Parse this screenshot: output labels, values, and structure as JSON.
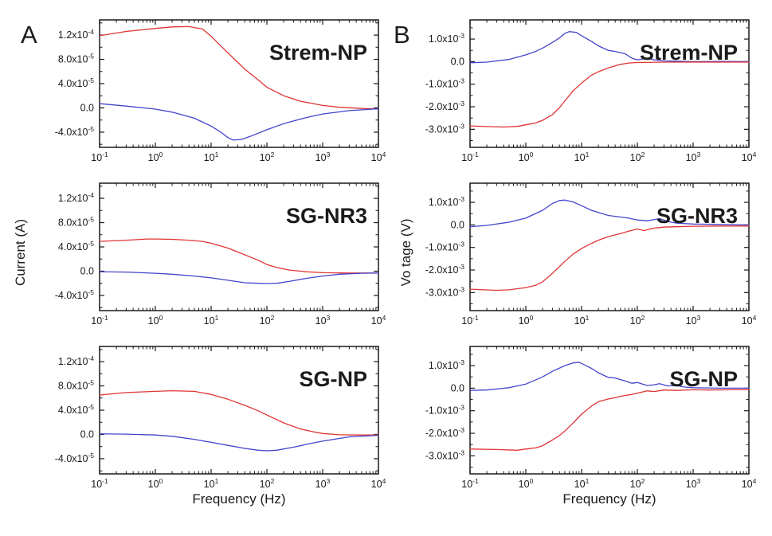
{
  "figure": {
    "background": "#ffffff",
    "colors": {
      "red_series": "#e03434",
      "blue_series": "#4444cc",
      "axis": "#1a1a1a",
      "text": "#1b1b1b"
    },
    "columns": [
      {
        "letter": "A",
        "y_axis_title": "Current (A)",
        "x_axis_title": "Frequency (Hz)",
        "chart_indexes": [
          0,
          1,
          2
        ]
      },
      {
        "letter": "B",
        "y_axis_title": "Vo tage (V)",
        "x_axis_title": "Frequency (Hz)",
        "chart_indexes": [
          3,
          4,
          5
        ]
      }
    ]
  },
  "chart_data": [
    {
      "type": "line",
      "panel": "A",
      "label": "Strem-NP",
      "xlabel": "Frequency (Hz)",
      "ylabel": "Current (A)",
      "xscale": "log",
      "xlim": [
        0.1,
        10000
      ],
      "ylim": [
        -6.5e-05,
        0.000145
      ],
      "grid": false,
      "legend": "none",
      "xticks": {
        "values": [
          0.1,
          1,
          10,
          100,
          1000,
          10000
        ],
        "labels": [
          "10^-1",
          "10^0",
          "10^1",
          "10^2",
          "10^3",
          "10^4"
        ]
      },
      "yticks": {
        "values": [
          0.00012,
          8e-05,
          4e-05,
          0,
          -4e-05
        ],
        "labels": [
          "1.2x10^-4",
          "8.0x10^-5",
          "4.0x10^-5",
          "0.0",
          "-4.0x10^-5"
        ]
      },
      "series": [
        {
          "name": "red",
          "color": "#e03434",
          "x": [
            0.1,
            0.3,
            1,
            2,
            4,
            7,
            10,
            15,
            25,
            40,
            70,
            100,
            200,
            400,
            1000,
            2000,
            5000,
            10000
          ],
          "y": [
            0.000119,
            0.000126,
            0.000131,
            0.0001335,
            0.000134,
            0.00013,
            0.000118,
            0.000102,
            8.2e-05,
            6.4e-05,
            4.6e-05,
            3.4e-05,
            2e-05,
            1.1e-05,
            4e-06,
            1e-06,
            -1e-06,
            -1.5e-06
          ]
        },
        {
          "name": "blue",
          "color": "#4444cc",
          "x": [
            0.1,
            0.3,
            1,
            2,
            5,
            10,
            15,
            20,
            25,
            35,
            50,
            100,
            200,
            500,
            1000,
            3000,
            10000
          ],
          "y": [
            7e-06,
            3e-06,
            -2e-06,
            -7e-06,
            -1.7e-05,
            -3e-05,
            -4e-05,
            -4.9e-05,
            -5.3e-05,
            -5.2e-05,
            -4.7e-05,
            -3.6e-05,
            -2.6e-05,
            -1.6e-05,
            -1e-05,
            -4.5e-06,
            -1.5e-06
          ]
        }
      ]
    },
    {
      "type": "line",
      "panel": "A",
      "label": "SG-NR3",
      "xlabel": "Frequency (Hz)",
      "ylabel": "Current (A)",
      "xscale": "log",
      "xlim": [
        0.1,
        10000
      ],
      "ylim": [
        -6.5e-05,
        0.000145
      ],
      "grid": false,
      "legend": "none",
      "xticks": {
        "values": [
          0.1,
          1,
          10,
          100,
          1000,
          10000
        ],
        "labels": [
          "10^-1",
          "10^0",
          "10^1",
          "10^2",
          "10^3",
          "10^4"
        ]
      },
      "yticks": {
        "values": [
          0.00012,
          8e-05,
          4e-05,
          0,
          -4e-05
        ],
        "labels": [
          "1.2x10^-4",
          "8.0x10^-5",
          "4.0x10^-5",
          "0.0",
          "-4.0x10^-5"
        ]
      },
      "series": [
        {
          "name": "red",
          "color": "#e03434",
          "x": [
            0.1,
            0.3,
            0.7,
            1,
            2,
            4,
            7,
            10,
            20,
            40,
            70,
            100,
            150,
            250,
            500,
            1000,
            3000,
            10000
          ],
          "y": [
            4.9e-05,
            5.1e-05,
            5.3e-05,
            5.3e-05,
            5.25e-05,
            5.1e-05,
            4.9e-05,
            4.6e-05,
            3.8e-05,
            2.7e-05,
            1.8e-05,
            1.1e-05,
            6e-06,
            2e-06,
            -1e-06,
            -2.5e-06,
            -3e-06,
            -3e-06
          ]
        },
        {
          "name": "blue",
          "color": "#4444cc",
          "x": [
            0.1,
            0.3,
            1,
            2,
            5,
            10,
            20,
            40,
            70,
            100,
            150,
            250,
            500,
            1000,
            2000,
            5000,
            10000
          ],
          "y": [
            -1e-06,
            -1.5e-06,
            -3.5e-06,
            -5e-06,
            -8e-06,
            -1.1e-05,
            -1.5e-05,
            -1.9e-05,
            -2e-05,
            -2.05e-05,
            -2e-05,
            -1.7e-05,
            -1.2e-05,
            -8e-06,
            -5e-06,
            -3.5e-06,
            -3e-06
          ]
        }
      ]
    },
    {
      "type": "line",
      "panel": "A",
      "label": "SG-NP",
      "xlabel": "Frequency (Hz)",
      "ylabel": "Current (A)",
      "xscale": "log",
      "xlim": [
        0.1,
        10000
      ],
      "ylim": [
        -6.5e-05,
        0.000145
      ],
      "grid": false,
      "legend": "none",
      "xticks": {
        "values": [
          0.1,
          1,
          10,
          100,
          1000,
          10000
        ],
        "labels": [
          "10^-1",
          "10^0",
          "10^1",
          "10^2",
          "10^3",
          "10^4"
        ]
      },
      "yticks": {
        "values": [
          0.00012,
          8e-05,
          4e-05,
          0,
          -4e-05
        ],
        "labels": [
          "1.2x10^-4",
          "8.0x10^-5",
          "4.0x10^-5",
          "0.0",
          "-4.0x10^-5"
        ]
      },
      "series": [
        {
          "name": "red",
          "color": "#e03434",
          "x": [
            0.1,
            0.3,
            1,
            2,
            5,
            10,
            20,
            40,
            70,
            100,
            200,
            400,
            700,
            1000,
            2000,
            5000,
            10000
          ],
          "y": [
            6.5e-05,
            6.9e-05,
            7.1e-05,
            7.2e-05,
            7.1e-05,
            6.6e-05,
            5.8e-05,
            4.8e-05,
            3.9e-05,
            3.2e-05,
            1.9e-05,
            9e-06,
            4e-06,
            1.5e-06,
            -5e-07,
            -1e-06,
            -1e-06
          ]
        },
        {
          "name": "blue",
          "color": "#4444cc",
          "x": [
            0.1,
            0.3,
            1,
            2,
            5,
            10,
            20,
            40,
            70,
            100,
            150,
            300,
            600,
            1000,
            3000,
            10000
          ],
          "y": [
            1e-06,
            5e-07,
            -1e-06,
            -3e-06,
            -8e-06,
            -1.3e-05,
            -1.8e-05,
            -2.3e-05,
            -2.6e-05,
            -2.7e-05,
            -2.6e-05,
            -2.1e-05,
            -1.5e-05,
            -1.1e-05,
            -4e-06,
            -1.5e-06
          ]
        }
      ]
    },
    {
      "type": "line",
      "panel": "B",
      "label": "Strem-NP",
      "xlabel": "Frequency (Hz)",
      "ylabel": "Vo tage (V)",
      "xscale": "log",
      "xlim": [
        0.1,
        10000
      ],
      "ylim": [
        -0.0038,
        0.00185
      ],
      "grid": false,
      "legend": "none",
      "xticks": {
        "values": [
          0.1,
          1,
          10,
          100,
          1000,
          10000
        ],
        "labels": [
          "10^-1",
          "10^0",
          "10^1",
          "10^2",
          "10^3",
          "10^4"
        ]
      },
      "yticks": {
        "values": [
          0.001,
          0,
          -0.001,
          -0.002,
          -0.003
        ],
        "labels": [
          "1.0x10^-3",
          "0.0",
          "-1.0x10^-3",
          "-2.0x10^-3",
          "-3.0x10^-3"
        ]
      },
      "series": [
        {
          "name": "blue",
          "color": "#4444cc",
          "x": [
            0.1,
            0.2,
            0.5,
            1,
            1.5,
            2,
            3,
            4,
            5,
            6,
            8,
            10,
            15,
            20,
            30,
            40,
            60,
            80,
            100,
            150,
            200,
            300,
            500,
            1000,
            3000,
            10000
          ],
          "y": [
            -5e-05,
            -2e-05,
            0.0001,
            0.0003,
            0.00045,
            0.0006,
            0.00085,
            0.00105,
            0.00125,
            0.00133,
            0.0013,
            0.00115,
            0.0009,
            0.0007,
            0.0005,
            0.00045,
            0.00035,
            0.00015,
            8e-05,
            0.00015,
            8e-05,
            3e-05,
            2e-05,
            0,
            1e-05,
            0
          ]
        },
        {
          "name": "red",
          "color": "#e03434",
          "x": [
            0.1,
            0.2,
            0.4,
            0.7,
            1,
            1.5,
            2,
            3,
            4,
            5,
            7,
            10,
            15,
            20,
            30,
            50,
            70,
            100,
            300,
            1000,
            10000
          ],
          "y": [
            -0.00285,
            -0.00288,
            -0.0029,
            -0.00287,
            -0.0028,
            -0.00272,
            -0.0026,
            -0.00235,
            -0.00205,
            -0.00175,
            -0.0013,
            -0.00095,
            -0.0006,
            -0.00045,
            -0.00028,
            -0.00012,
            -6e-05,
            -4e-05,
            -2e-05,
            -2e-05,
            -2e-05
          ]
        }
      ]
    },
    {
      "type": "line",
      "panel": "B",
      "label": "SG-NR3",
      "xlabel": "Frequency (Hz)",
      "ylabel": "Vo tage (V)",
      "xscale": "log",
      "xlim": [
        0.1,
        10000
      ],
      "ylim": [
        -0.0038,
        0.00185
      ],
      "grid": false,
      "legend": "none",
      "xticks": {
        "values": [
          0.1,
          1,
          10,
          100,
          1000,
          10000
        ],
        "labels": [
          "10^-1",
          "10^0",
          "10^1",
          "10^2",
          "10^3",
          "10^4"
        ]
      },
      "yticks": {
        "values": [
          0.001,
          0,
          -0.001,
          -0.002,
          -0.003
        ],
        "labels": [
          "1.0x10^-3",
          "0.0",
          "-1.0x10^-3",
          "-2.0x10^-3",
          "-3.0x10^-3"
        ]
      },
      "series": [
        {
          "name": "blue",
          "color": "#4444cc",
          "x": [
            0.1,
            0.2,
            0.5,
            1,
            2,
            3,
            4,
            5,
            7,
            10,
            15,
            20,
            30,
            50,
            70,
            100,
            150,
            250,
            350,
            500,
            1000,
            3000,
            10000
          ],
          "y": [
            -8e-05,
            -2e-05,
            0.00012,
            0.0003,
            0.00065,
            0.00095,
            0.00108,
            0.0011,
            0.00102,
            0.00085,
            0.00065,
            0.00055,
            0.00042,
            0.00035,
            0.0003,
            0.00022,
            0.00018,
            0.00028,
            0.00015,
            8e-05,
            4e-05,
            2e-05,
            0
          ]
        },
        {
          "name": "red",
          "color": "#e03434",
          "x": [
            0.1,
            0.3,
            0.5,
            1,
            1.5,
            2,
            3,
            4,
            5,
            7,
            10,
            15,
            20,
            30,
            50,
            70,
            100,
            130,
            200,
            300,
            500,
            1000,
            3000,
            10000
          ],
          "y": [
            -0.00285,
            -0.0029,
            -0.00288,
            -0.00278,
            -0.00268,
            -0.00252,
            -0.00215,
            -0.00185,
            -0.00162,
            -0.0013,
            -0.00105,
            -0.00082,
            -0.00068,
            -0.00052,
            -0.00038,
            -0.00028,
            -0.00018,
            -0.00025,
            -0.00014,
            -0.0001,
            -8e-05,
            -6e-05,
            -5e-05,
            -5e-05
          ]
        }
      ]
    },
    {
      "type": "line",
      "panel": "B",
      "label": "SG-NP",
      "xlabel": "Frequency (Hz)",
      "ylabel": "Vo tage (V)",
      "xscale": "log",
      "xlim": [
        0.1,
        10000
      ],
      "ylim": [
        -0.0038,
        0.00185
      ],
      "grid": false,
      "legend": "none",
      "xticks": {
        "values": [
          0.1,
          1,
          10,
          100,
          1000,
          10000
        ],
        "labels": [
          "10^-1",
          "10^0",
          "10^1",
          "10^2",
          "10^3",
          "10^4"
        ]
      },
      "yticks": {
        "values": [
          0.001,
          0,
          -0.001,
          -0.002,
          -0.003
        ],
        "labels": [
          "1.0x10^-3",
          "0.0",
          "-1.0x10^-3",
          "-2.0x10^-3",
          "-3.0x10^-3"
        ]
      },
      "series": [
        {
          "name": "blue",
          "color": "#4444cc",
          "x": [
            0.1,
            0.2,
            0.5,
            1,
            2,
            3,
            5,
            7,
            9,
            12,
            15,
            20,
            30,
            40,
            60,
            80,
            100,
            150,
            200,
            250,
            350,
            500,
            700,
            1000,
            3000,
            10000
          ],
          "y": [
            -0.0001,
            -8e-05,
            2e-05,
            0.00018,
            0.0005,
            0.00075,
            0.001,
            0.00112,
            0.00115,
            0.001,
            0.00088,
            0.00068,
            0.00048,
            0.00045,
            0.00032,
            0.00022,
            0.00025,
            0.00012,
            0.00015,
            0.0002,
            0.0001,
            0.00012,
            5e-05,
            2e-05,
            0,
            0
          ]
        },
        {
          "name": "red",
          "color": "#e03434",
          "x": [
            0.1,
            0.3,
            0.7,
            1,
            1.5,
            2,
            3,
            4,
            5,
            7,
            10,
            15,
            20,
            30,
            40,
            60,
            80,
            100,
            150,
            200,
            300,
            500,
            1000,
            2000,
            5000,
            10000
          ],
          "y": [
            -0.0027,
            -0.00272,
            -0.00275,
            -0.0027,
            -0.00265,
            -0.00255,
            -0.0023,
            -0.0021,
            -0.0019,
            -0.00155,
            -0.00115,
            -0.0008,
            -0.0006,
            -0.00048,
            -0.00042,
            -0.00032,
            -0.00028,
            -0.00022,
            -0.00012,
            -0.00015,
            -8e-05,
            -0.0001,
            -7e-05,
            -8e-05,
            -7e-05,
            -7e-05
          ]
        }
      ]
    }
  ]
}
